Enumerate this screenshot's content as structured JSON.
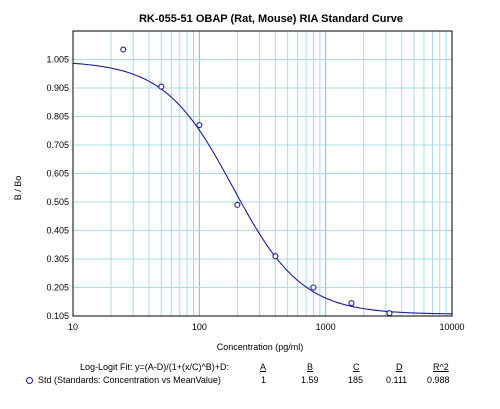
{
  "chart_data": {
    "type": "scatter",
    "title": "RK-055-51 OBAP (Rat, Mouse) RIA Standard Curve",
    "xlabel": "Concentration (pg/ml)",
    "ylabel": "B / Bo",
    "xscale": "log",
    "xlim": [
      10,
      10000
    ],
    "ylim": [
      0.105,
      1.105
    ],
    "x_ticks": [
      "10",
      "100",
      "1000",
      "10000"
    ],
    "y_ticks": [
      "0.105",
      "0.205",
      "0.305",
      "0.405",
      "0.505",
      "0.605",
      "0.705",
      "0.805",
      "0.905",
      "1.005"
    ],
    "grid": true,
    "series": [
      {
        "name": "Std (Standards: Concentration vs MeanValue)",
        "marker": "circle",
        "color": "#1a1aa8",
        "x": [
          25,
          50,
          100,
          200,
          400,
          800,
          1600,
          3200
        ],
        "y": [
          1.04,
          0.91,
          0.775,
          0.495,
          0.315,
          0.205,
          0.15,
          0.115
        ]
      }
    ],
    "fit": {
      "model": "Log-Logit",
      "color": "#1a1aa8",
      "A": 1,
      "B": 1.59,
      "C": 185,
      "D": 0.111
    }
  },
  "fit_table": {
    "fit_label": "Log-Logit Fit: y=(A-D)/(1+(x/C)^B)+D:",
    "headers": [
      "A",
      "B",
      "C",
      "D",
      "R^2"
    ],
    "series_label": "Std (Standards: Concentration vs MeanValue)",
    "values": [
      "1",
      "1.59",
      "185",
      "0.111",
      "0.988"
    ]
  }
}
